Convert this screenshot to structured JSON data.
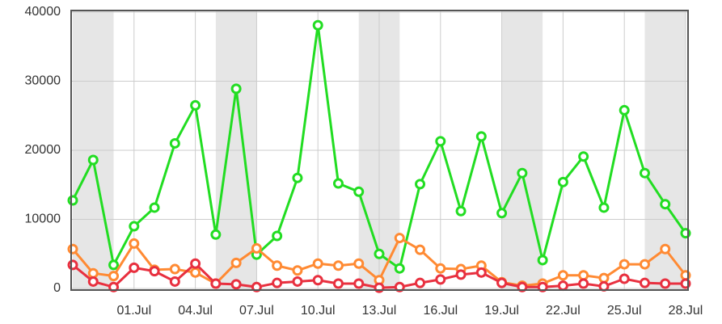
{
  "chart_data": {
    "type": "line",
    "categories": [
      null,
      null,
      null,
      "01.Jul",
      null,
      null,
      "04.Jul",
      null,
      null,
      "07.Jul",
      null,
      null,
      "10.Jul",
      null,
      null,
      "13.Jul",
      null,
      null,
      "16.Jul",
      null,
      null,
      "19.Jul",
      null,
      null,
      "22.Jul",
      null,
      null,
      "25.Jul",
      null,
      null,
      "28.Jul"
    ],
    "series": [
      {
        "color": "#22dd22",
        "values": [
          12750,
          18600,
          3400,
          9000,
          11700,
          21000,
          26500,
          7800,
          28900,
          4900,
          7600,
          16000,
          38100,
          15200,
          14000,
          5000,
          2900,
          15100,
          21300,
          11200,
          22000,
          10900,
          16700,
          4100,
          15400,
          19100,
          11700,
          25800,
          16700,
          12200,
          8000
        ]
      },
      {
        "color": "#ff8a33",
        "values": [
          5700,
          2200,
          1800,
          6500,
          2700,
          2800,
          2300,
          700,
          3700,
          5800,
          3300,
          2600,
          3600,
          3300,
          3600,
          1200,
          7300,
          5600,
          2900,
          2800,
          3300,
          900,
          400,
          700,
          1900,
          1900,
          1500,
          3500,
          3500,
          5700,
          1900
        ]
      },
      {
        "color": "#e8303f",
        "values": [
          3400,
          1000,
          200,
          3000,
          2500,
          1000,
          3600,
          700,
          600,
          200,
          800,
          1000,
          1200,
          700,
          700,
          100,
          200,
          800,
          1300,
          2000,
          2300,
          800,
          200,
          200,
          400,
          700,
          300,
          1400,
          800,
          700,
          700
        ]
      }
    ],
    "ylim": [
      0,
      40000
    ],
    "yticks": [
      0,
      10000,
      20000,
      30000,
      40000
    ],
    "grid": true
  }
}
